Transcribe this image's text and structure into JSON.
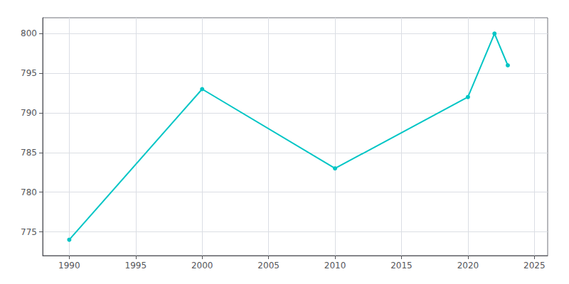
{
  "chart_data": {
    "type": "line",
    "x": [
      1990,
      2000,
      2010,
      2020,
      2022,
      2023
    ],
    "values": [
      774,
      793,
      783,
      792,
      800,
      796
    ],
    "color": "#00C5C5",
    "marker": "circle",
    "xlim": [
      1988,
      2026
    ],
    "ylim": [
      772,
      802
    ],
    "xticks": [
      1990,
      1995,
      2000,
      2005,
      2010,
      2015,
      2020,
      2025
    ],
    "yticks": [
      775,
      780,
      785,
      790,
      795,
      800
    ],
    "grid": true
  }
}
